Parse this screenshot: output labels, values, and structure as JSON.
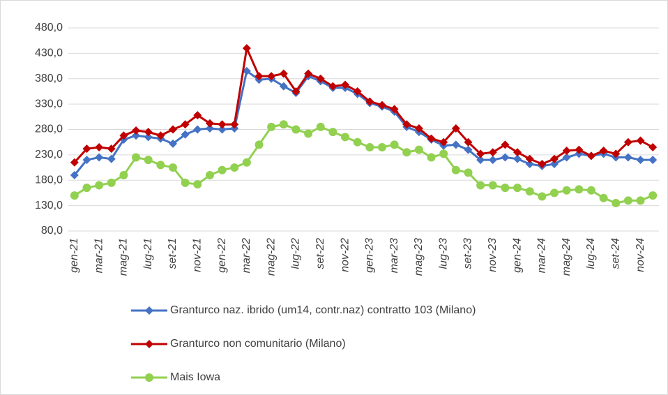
{
  "chart_data": {
    "type": "line",
    "categories": [
      "gen-21",
      null,
      "mar-21",
      null,
      "mag-21",
      null,
      "lug-21",
      null,
      "set-21",
      null,
      "nov-21",
      null,
      "gen-22",
      null,
      "mar-22",
      null,
      "mag-22",
      null,
      "lug-22",
      null,
      "set-22",
      null,
      "nov-22",
      null,
      "gen-23",
      null,
      "mar-23",
      null,
      "mag-23",
      null,
      "lug-23",
      null,
      "set-23",
      null,
      "nov-23",
      null,
      "gen-24",
      null,
      "mar-24",
      null,
      "mag-24",
      null,
      "lug-24",
      null,
      "set-24",
      null,
      "nov-24",
      null
    ],
    "series": [
      {
        "name": "Granturco naz. ibrido (um14, contr.naz) contratto 103 (Milano)",
        "color": "#4472c4",
        "marker": "diamond",
        "values": [
          190,
          220,
          225,
          222,
          260,
          268,
          265,
          262,
          252,
          270,
          280,
          282,
          280,
          282,
          395,
          378,
          380,
          365,
          352,
          385,
          375,
          362,
          362,
          350,
          332,
          325,
          315,
          285,
          275,
          260,
          248,
          250,
          240,
          220,
          220,
          225,
          222,
          212,
          208,
          212,
          225,
          232,
          228,
          232,
          225,
          225,
          220,
          220
        ]
      },
      {
        "name": "Granturco non comunitario (Milano)",
        "color": "#c00000",
        "marker": "diamond",
        "values": [
          215,
          242,
          245,
          242,
          268,
          278,
          275,
          268,
          280,
          290,
          308,
          292,
          290,
          290,
          440,
          385,
          385,
          390,
          355,
          390,
          380,
          365,
          368,
          355,
          335,
          328,
          320,
          290,
          282,
          262,
          255,
          282,
          255,
          232,
          235,
          250,
          235,
          222,
          212,
          222,
          238,
          240,
          228,
          238,
          232,
          255,
          258,
          245
        ]
      },
      {
        "name": "Mais Iowa",
        "color": "#92d050",
        "marker": "circle",
        "values": [
          150,
          165,
          170,
          175,
          190,
          225,
          220,
          210,
          205,
          175,
          172,
          190,
          200,
          205,
          215,
          250,
          285,
          290,
          280,
          272,
          285,
          275,
          265,
          255,
          245,
          245,
          250,
          235,
          240,
          225,
          232,
          200,
          195,
          170,
          170,
          165,
          165,
          158,
          148,
          155,
          160,
          162,
          160,
          145,
          135,
          140,
          140,
          150
        ]
      }
    ],
    "ylim": [
      80,
      480
    ],
    "yticks": [
      {
        "value": 80,
        "label": "80,0"
      },
      {
        "value": 130,
        "label": "130,0"
      },
      {
        "value": 180,
        "label": "180,0"
      },
      {
        "value": 230,
        "label": "230,0"
      },
      {
        "value": 280,
        "label": "280,0"
      },
      {
        "value": 330,
        "label": "330,0"
      },
      {
        "value": 380,
        "label": "380,0"
      },
      {
        "value": 430,
        "label": "430,0"
      },
      {
        "value": 480,
        "label": "480,0"
      }
    ],
    "grid": true
  }
}
